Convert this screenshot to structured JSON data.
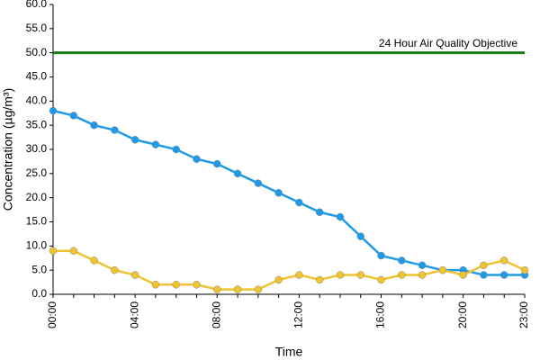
{
  "chart_data": {
    "type": "line",
    "x_label": "Time",
    "y_label": "Concentration (µg/m³)",
    "categories": [
      "00:00",
      null,
      null,
      null,
      "04:00",
      null,
      null,
      null,
      "08:00",
      null,
      null,
      null,
      "12:00",
      null,
      null,
      null,
      "16:00",
      null,
      null,
      null,
      "20:00",
      null,
      null,
      "23:00"
    ],
    "series": [
      {
        "color": "#1e9be8",
        "values": [
          38,
          37,
          35,
          34,
          32,
          31,
          30,
          28,
          27,
          25,
          23,
          21,
          19,
          17,
          16,
          12,
          8,
          7,
          6,
          5,
          5,
          4,
          4,
          4
        ]
      },
      {
        "color": "#f0c430",
        "values": [
          9,
          9,
          7,
          5,
          4,
          2,
          2,
          2,
          1,
          1,
          1,
          3,
          4,
          3,
          4,
          4,
          3,
          4,
          4,
          5,
          4,
          6,
          7,
          5
        ]
      }
    ],
    "reference_line": {
      "value": 50,
      "label": "24 Hour Air Quality Objective",
      "color": "#1a7a1a"
    },
    "ylim": [
      0,
      60
    ],
    "yticks": [
      {
        "value": 0,
        "label": "0.0"
      },
      {
        "value": 5,
        "label": "5.0"
      },
      {
        "value": 10,
        "label": "10.0"
      },
      {
        "value": 15,
        "label": "15.0"
      },
      {
        "value": 20,
        "label": "20.0"
      },
      {
        "value": 25,
        "label": "25.0"
      },
      {
        "value": 30,
        "label": "30.0"
      },
      {
        "value": 35,
        "label": "35.0"
      },
      {
        "value": 40,
        "label": "40.0"
      },
      {
        "value": 45,
        "label": "45.0"
      },
      {
        "value": 50,
        "label": "50.0"
      },
      {
        "value": 55,
        "label": "55.0"
      },
      {
        "value": 60,
        "label": "60.0"
      }
    ]
  }
}
